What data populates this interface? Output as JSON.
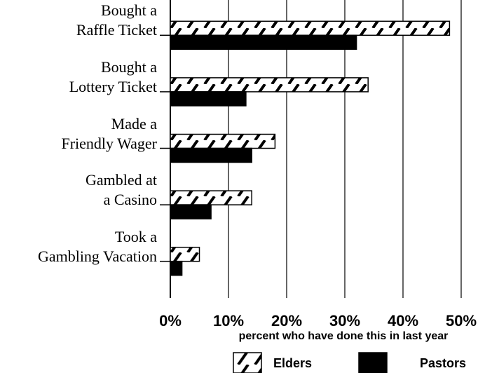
{
  "chart_data": {
    "type": "bar",
    "orientation": "horizontal",
    "categories": [
      "Bought a\nRaffle Ticket",
      "Bought a\nLottery Ticket",
      "Made a\nFriendly Wager",
      "Gambled at\na Casino",
      "Took a\nGambling Vacation"
    ],
    "series": [
      {
        "name": "Elders",
        "color": "#ffffff",
        "hatch": true,
        "values": [
          48,
          34,
          18,
          14,
          5
        ]
      },
      {
        "name": "Pastors",
        "color": "#000000",
        "values": [
          32,
          13,
          14,
          7,
          2
        ]
      }
    ],
    "xlabel": "percent who have done this in last year",
    "xlim": [
      0,
      50
    ],
    "xticks": [
      {
        "value": 0,
        "label": "0%"
      },
      {
        "value": 10,
        "label": "10%"
      },
      {
        "value": 20,
        "label": "20%"
      },
      {
        "value": 30,
        "label": "30%"
      },
      {
        "value": 40,
        "label": "40%"
      },
      {
        "value": 50,
        "label": "50%"
      }
    ],
    "grid": true,
    "legend": "bottom"
  }
}
